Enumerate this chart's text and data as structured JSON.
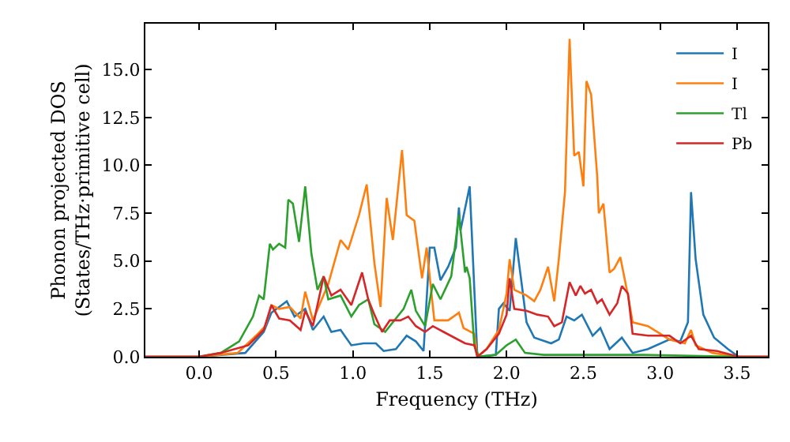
{
  "chart_data": {
    "type": "line",
    "xlabel": "Frequency (THz)",
    "ylabel": "Phonon projected DOS\n(States/THz·primitive cell)",
    "xlim": [
      -0.35,
      3.7
    ],
    "ylim": [
      0,
      17.4
    ],
    "xticks": [
      {
        "value": 0,
        "label": "0.0"
      },
      {
        "value": 0.5,
        "label": "0.5"
      },
      {
        "value": 1,
        "label": "1.0"
      },
      {
        "value": 1.5,
        "label": "1.5"
      },
      {
        "value": 2,
        "label": "2.0"
      },
      {
        "value": 2.5,
        "label": "2.5"
      },
      {
        "value": 3,
        "label": "3.0"
      },
      {
        "value": 3.5,
        "label": "3.5"
      }
    ],
    "yticks": [
      {
        "value": 0,
        "label": "0.0"
      },
      2.5,
      {
        "value": 5,
        "label": "5.0"
      },
      7.5,
      {
        "value": 10,
        "label": "10.0"
      },
      12.5,
      {
        "value": 15,
        "label": "15.0"
      }
    ],
    "grid": false,
    "legend": "top right",
    "marker": "none",
    "line_style": "solid",
    "series": [
      {
        "name": "I",
        "color": "#1f77b4",
        "x": [
          -0.35,
          0.0,
          0.3,
          0.42,
          0.47,
          0.57,
          0.62,
          0.69,
          0.74,
          0.81,
          0.86,
          0.92,
          0.99,
          1.07,
          1.15,
          1.2,
          1.28,
          1.35,
          1.41,
          1.46,
          1.5,
          1.53,
          1.57,
          1.62,
          1.67,
          1.69,
          1.7,
          1.76,
          1.81,
          1.93,
          1.95,
          1.98,
          2.02,
          2.06,
          2.1,
          2.13,
          2.18,
          2.29,
          2.34,
          2.39,
          2.44,
          2.49,
          2.56,
          2.61,
          2.67,
          2.75,
          2.82,
          2.92,
          3.06,
          3.13,
          3.18,
          3.2,
          3.23,
          3.28,
          3.35,
          3.44,
          3.51,
          3.7
        ],
        "values": [
          0,
          0,
          0.2,
          1.3,
          2.3,
          2.9,
          2.1,
          2.5,
          1.4,
          2.1,
          1.3,
          1.4,
          0.6,
          0.7,
          0.7,
          0.3,
          0.4,
          1.1,
          0.8,
          0.3,
          5.7,
          5.7,
          4.0,
          4.7,
          5.7,
          7.8,
          6.6,
          8.9,
          0,
          0.1,
          2.5,
          2.8,
          2.4,
          6.2,
          3.7,
          1.8,
          1.0,
          0.7,
          0.9,
          2.1,
          1.9,
          2.2,
          1.1,
          1.5,
          0.4,
          1.0,
          0.2,
          0.4,
          0.9,
          0.8,
          1.8,
          8.6,
          5.1,
          2.2,
          1.0,
          0.4,
          0,
          0
        ]
      },
      {
        "name": "I",
        "color": "#ff7f0e",
        "x": [
          -0.35,
          0.0,
          0.25,
          0.37,
          0.43,
          0.47,
          0.52,
          0.59,
          0.66,
          0.69,
          0.74,
          0.84,
          0.92,
          0.97,
          1.04,
          1.09,
          1.14,
          1.18,
          1.22,
          1.26,
          1.32,
          1.35,
          1.4,
          1.45,
          1.48,
          1.53,
          1.62,
          1.69,
          1.72,
          1.79,
          1.81,
          1.87,
          1.95,
          2.0,
          2.02,
          2.05,
          2.13,
          2.18,
          2.22,
          2.27,
          2.31,
          2.34,
          2.38,
          2.41,
          2.44,
          2.47,
          2.5,
          2.52,
          2.55,
          2.59,
          2.6,
          2.63,
          2.67,
          2.7,
          2.74,
          2.79,
          2.82,
          2.92,
          3.06,
          3.16,
          3.2,
          3.23,
          3.34,
          3.51,
          3.7
        ],
        "values": [
          0,
          0,
          0.2,
          1.1,
          1.6,
          2.7,
          2.5,
          2.6,
          2.0,
          3.4,
          1.9,
          3.8,
          6.1,
          5.6,
          7.4,
          9.0,
          4.9,
          2.6,
          8.3,
          6.1,
          10.8,
          7.4,
          7.1,
          4.1,
          5.7,
          1.9,
          1.9,
          2.3,
          1.5,
          1.2,
          0,
          0.4,
          1.4,
          3.3,
          5.1,
          3.5,
          3.2,
          2.9,
          3.5,
          4.7,
          2.9,
          5.1,
          8.6,
          16.6,
          10.5,
          10.7,
          8.9,
          14.4,
          13.7,
          9.4,
          7.5,
          8.0,
          4.4,
          4.6,
          5.2,
          3.2,
          1.8,
          1.6,
          0.9,
          0.7,
          1.4,
          0.6,
          0.2,
          0,
          0
        ]
      },
      {
        "name": "Tl",
        "color": "#2ca02c",
        "x": [
          -0.35,
          0.0,
          0.14,
          0.26,
          0.35,
          0.39,
          0.42,
          0.46,
          0.48,
          0.52,
          0.56,
          0.58,
          0.61,
          0.65,
          0.69,
          0.73,
          0.77,
          0.81,
          0.84,
          0.92,
          0.99,
          1.04,
          1.1,
          1.14,
          1.21,
          1.28,
          1.33,
          1.38,
          1.41,
          1.47,
          1.52,
          1.57,
          1.64,
          1.69,
          1.73,
          1.74,
          1.76,
          1.79,
          1.82,
          1.93,
          2.0,
          2.06,
          2.12,
          2.24,
          2.55,
          2.89,
          3.51,
          3.7
        ],
        "values": [
          0,
          0,
          0.2,
          0.8,
          2.1,
          3.2,
          3.0,
          5.9,
          5.6,
          5.9,
          5.7,
          8.2,
          8.0,
          6.0,
          8.9,
          5.4,
          3.5,
          4.2,
          3.0,
          3.2,
          2.1,
          2.7,
          3.0,
          1.7,
          1.3,
          2.0,
          2.5,
          3.5,
          2.4,
          1.6,
          3.8,
          3.0,
          4.2,
          7.4,
          4.4,
          4.7,
          4.1,
          0.6,
          0,
          0.1,
          0.6,
          0.9,
          0.2,
          0.1,
          0.1,
          0.1,
          0,
          0
        ]
      },
      {
        "name": "Pb",
        "color": "#d62728",
        "x": [
          -0.35,
          0.0,
          0.14,
          0.32,
          0.42,
          0.47,
          0.52,
          0.59,
          0.66,
          0.69,
          0.74,
          0.81,
          0.86,
          0.92,
          0.99,
          1.06,
          1.1,
          1.14,
          1.19,
          1.24,
          1.31,
          1.36,
          1.41,
          1.47,
          1.52,
          1.59,
          1.66,
          1.73,
          1.79,
          1.81,
          1.87,
          1.95,
          2.0,
          2.02,
          2.05,
          2.13,
          2.2,
          2.27,
          2.31,
          2.36,
          2.41,
          2.45,
          2.48,
          2.51,
          2.55,
          2.59,
          2.62,
          2.67,
          2.72,
          2.75,
          2.79,
          2.82,
          2.92,
          3.06,
          3.13,
          3.2,
          3.25,
          3.37,
          3.51,
          3.7
        ],
        "values": [
          0,
          0,
          0.2,
          0.6,
          1.4,
          2.7,
          2.0,
          1.9,
          1.4,
          2.4,
          1.6,
          4.2,
          3.2,
          3.5,
          2.7,
          4.4,
          3.0,
          2.2,
          1.3,
          1.9,
          1.9,
          2.1,
          1.6,
          1.3,
          1.6,
          1.3,
          1.0,
          0.7,
          0.6,
          0,
          0.4,
          1.2,
          2.2,
          4.1,
          2.5,
          2.4,
          2.2,
          2.1,
          1.6,
          1.8,
          3.9,
          3.2,
          3.7,
          3.3,
          3.5,
          2.8,
          3.0,
          2.2,
          2.8,
          3.7,
          3.3,
          1.2,
          1.1,
          1.1,
          0.7,
          1.1,
          0.4,
          0.3,
          0,
          0
        ]
      }
    ]
  }
}
